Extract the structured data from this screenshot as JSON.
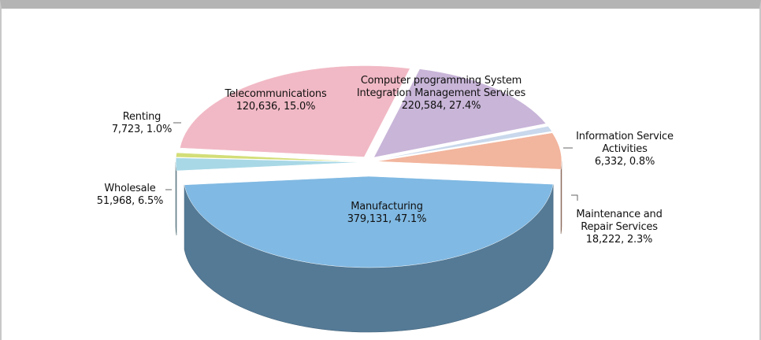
{
  "chart_data": {
    "type": "pie",
    "categories": [
      "Manufacturing",
      "Maintenance and Repair Services",
      "Information Service Activities",
      "Computer programming System Integration Management Services",
      "Telecommunications",
      "Renting",
      "Wholesale"
    ],
    "values": [
      379131,
      18222,
      6332,
      220584,
      120636,
      7723,
      51968
    ],
    "value_labels": [
      "379,131, 47.1%",
      "18,222, 2.3%",
      "6,332, 0.8%",
      "220,584, 27.4%",
      "120,636, 15.0%",
      "7,723, 1.0%",
      "51,968, 6.5%"
    ],
    "colors": [
      "#80b9e3",
      "#a8d8e6",
      "#d3de78",
      "#f1b9c5",
      "#c8b5d8",
      "#c9d8ec",
      "#f2b59d"
    ]
  }
}
